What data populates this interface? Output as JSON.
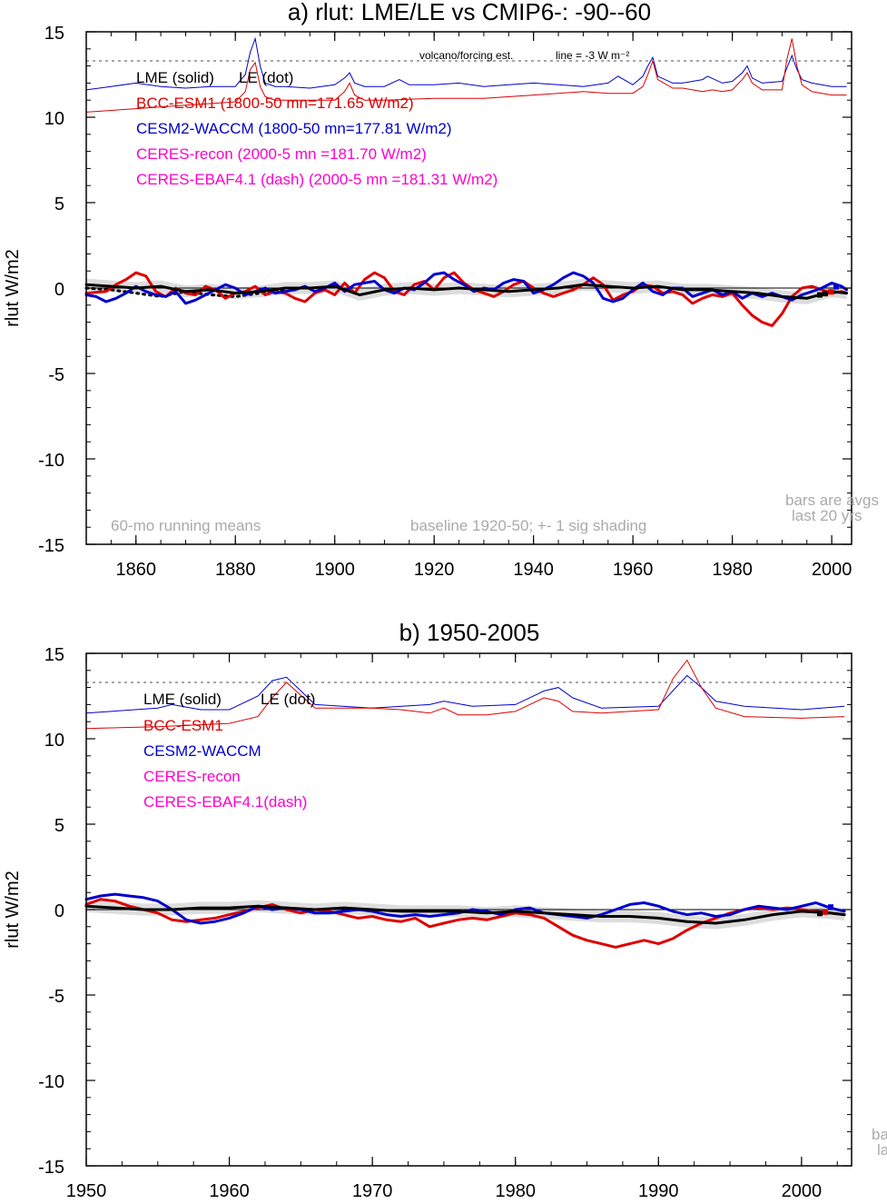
{
  "chart_data": [
    {
      "type": "line",
      "title": "a) rlut: LME/LE vs CMIP6-: -90--60",
      "ylabel": "rlut W/m2",
      "xlim": [
        1850,
        2004
      ],
      "ylim": [
        -15,
        15
      ],
      "xticks": [
        1860,
        1880,
        1900,
        1920,
        1940,
        1960,
        1980,
        2000
      ],
      "yticks": [
        -15,
        -10,
        -5,
        0,
        5,
        10,
        15
      ],
      "legend": [
        "LME (solid)",
        "LE (dot)",
        "BCC-ESM1 (1800-50 mn=171.65 W/m2)",
        "CESM2-WACCM (1800-50 mn=177.81 W/m2)",
        "CERES-recon (2000-5 mn =181.70 W/m2)",
        "CERES-EBAF4.1 (dash) (2000-5 mn =181.31 W/m2)"
      ],
      "legend_colors": [
        "#000000",
        "#000000",
        "#dd0000",
        "#0000cc",
        "#ff00cc",
        "#ff00cc"
      ],
      "annotations": [
        "volcano/forcing est.",
        "line = -3 W m⁻²",
        "60-mo running means",
        "baseline 1920-50; +- 1 sig shading",
        "bars are avgs",
        "last 20 yrs"
      ],
      "reference_line_y": 13.3,
      "shading": "+-1 sigma around LME",
      "series": [
        {
          "name": "LME (solid)",
          "color": "#000000",
          "x": [
            1850,
            1855,
            1860,
            1865,
            1870,
            1875,
            1880,
            1885,
            1890,
            1895,
            1900,
            1905,
            1910,
            1915,
            1920,
            1925,
            1930,
            1935,
            1940,
            1945,
            1950,
            1955,
            1960,
            1965,
            1970,
            1975,
            1980,
            1985,
            1990,
            1995,
            2000,
            2003
          ],
          "y": [
            0.2,
            0.1,
            0.0,
            0.1,
            -0.2,
            -0.1,
            -0.3,
            -0.2,
            0.0,
            0.0,
            0.1,
            -0.4,
            -0.1,
            0.0,
            -0.1,
            0.0,
            -0.1,
            -0.2,
            -0.1,
            0.0,
            0.2,
            0.1,
            0.0,
            0.1,
            -0.1,
            -0.1,
            -0.2,
            -0.3,
            -0.5,
            -0.6,
            -0.2,
            -0.3
          ]
        },
        {
          "name": "LE (dot)",
          "color": "#000000",
          "x": [
            1850,
            1855,
            1860,
            1865,
            1870,
            1875,
            1880,
            1885,
            1890
          ],
          "y": [
            0.0,
            -0.1,
            -0.3,
            -0.5,
            -0.2,
            -0.4,
            -0.5,
            -0.3,
            -0.1
          ]
        },
        {
          "name": "BCC-ESM1",
          "color": "#dd0000",
          "x": [
            1850,
            1854,
            1856,
            1858,
            1860,
            1862,
            1864,
            1866,
            1868,
            1870,
            1872,
            1874,
            1876,
            1878,
            1880,
            1882,
            1884,
            1886,
            1888,
            1890,
            1892,
            1894,
            1896,
            1898,
            1900,
            1902,
            1904,
            1906,
            1908,
            1910,
            1912,
            1914,
            1916,
            1918,
            1920,
            1922,
            1924,
            1926,
            1928,
            1930,
            1932,
            1934,
            1936,
            1938,
            1940,
            1942,
            1944,
            1946,
            1948,
            1950,
            1952,
            1954,
            1956,
            1958,
            1960,
            1962,
            1964,
            1966,
            1968,
            1970,
            1972,
            1974,
            1976,
            1978,
            1980,
            1982,
            1984,
            1986,
            1988,
            1990,
            1992,
            1994,
            1996,
            1998,
            2000,
            2002,
            2003
          ],
          "y": [
            -0.3,
            -0.2,
            0.2,
            0.5,
            0.9,
            0.7,
            -0.2,
            -0.5,
            0.0,
            -0.3,
            -0.4,
            0.1,
            -0.1,
            -0.6,
            -0.3,
            -0.2,
            0.1,
            -0.4,
            -0.2,
            -0.3,
            -0.6,
            -0.8,
            -0.3,
            -0.1,
            -0.4,
            0.3,
            -0.3,
            0.5,
            0.9,
            0.6,
            -0.2,
            -0.4,
            0.2,
            0.4,
            -0.1,
            0.6,
            0.9,
            0.3,
            -0.1,
            -0.3,
            -0.5,
            -0.2,
            0.2,
            0.4,
            0.0,
            -0.3,
            -0.5,
            -0.3,
            -0.1,
            0.2,
            0.6,
            0.2,
            -0.7,
            -0.4,
            -0.2,
            0.2,
            0.1,
            -0.3,
            -0.2,
            -0.4,
            -0.9,
            -0.6,
            -0.4,
            -0.5,
            -0.3,
            -1.0,
            -1.6,
            -2.0,
            -2.2,
            -1.5,
            -0.5,
            0.0,
            0.1,
            -0.1,
            -0.3,
            -0.2,
            -0.3
          ]
        },
        {
          "name": "CESM2-WACCM",
          "color": "#0000cc",
          "x": [
            1850,
            1852,
            1854,
            1856,
            1858,
            1860,
            1862,
            1864,
            1866,
            1868,
            1870,
            1872,
            1874,
            1876,
            1878,
            1880,
            1882,
            1884,
            1886,
            1888,
            1890,
            1892,
            1894,
            1896,
            1898,
            1900,
            1902,
            1904,
            1906,
            1908,
            1910,
            1912,
            1914,
            1916,
            1918,
            1920,
            1922,
            1924,
            1926,
            1928,
            1930,
            1932,
            1934,
            1936,
            1938,
            1940,
            1942,
            1944,
            1946,
            1948,
            1950,
            1952,
            1954,
            1956,
            1958,
            1960,
            1962,
            1964,
            1966,
            1968,
            1970,
            1972,
            1974,
            1976,
            1978,
            1980,
            1982,
            1984,
            1986,
            1988,
            1990,
            1992,
            1994,
            1996,
            1998,
            2000,
            2002,
            2003
          ],
          "y": [
            -0.4,
            -0.5,
            -0.8,
            -0.6,
            -0.3,
            0.1,
            -0.2,
            -0.4,
            -0.5,
            -0.2,
            -0.9,
            -0.7,
            -0.4,
            -0.1,
            0.2,
            0.0,
            -0.4,
            -0.2,
            0.0,
            -0.3,
            -0.2,
            -0.1,
            0.1,
            -0.2,
            0.0,
            0.3,
            -0.2,
            0.2,
            0.3,
            0.4,
            -0.1,
            -0.3,
            0.0,
            -0.1,
            0.3,
            0.8,
            0.9,
            0.5,
            0.2,
            -0.2,
            0.0,
            -0.1,
            0.3,
            0.5,
            0.4,
            -0.3,
            -0.1,
            0.2,
            0.6,
            0.9,
            0.7,
            0.3,
            -0.6,
            -0.8,
            -0.6,
            -0.1,
            0.3,
            -0.2,
            -0.4,
            0.0,
            0.0,
            -0.5,
            -0.3,
            -0.1,
            -0.4,
            -0.2,
            -0.6,
            -0.3,
            -0.5,
            -0.3,
            -0.5,
            -0.7,
            -0.4,
            -0.2,
            0.0,
            0.3,
            0.1,
            -0.1
          ]
        }
      ]
    },
    {
      "type": "line",
      "title": "b) 1950-2005",
      "ylabel": "rlut W/m2",
      "xlim": [
        1950,
        2003.5
      ],
      "ylim": [
        -15,
        15
      ],
      "xticks": [
        1950,
        1960,
        1970,
        1980,
        1990,
        2000
      ],
      "yticks": [
        -15,
        -10,
        -5,
        0,
        5,
        10,
        15
      ],
      "legend": [
        "LME (solid)",
        "LE (dot)",
        "BCC-ESM1",
        "CESM2-WACCM",
        "CERES-recon",
        "CERES-EBAF4.1(dash)"
      ],
      "legend_colors": [
        "#000000",
        "#000000",
        "#dd0000",
        "#0000cc",
        "#ff00cc",
        "#ff00cc"
      ],
      "annotations": [
        "ba",
        "la"
      ],
      "reference_line_y": 13.3,
      "series": [
        {
          "name": "LME (solid)",
          "color": "#000000",
          "x": [
            1950,
            1952,
            1954,
            1956,
            1958,
            1960,
            1962,
            1964,
            1966,
            1968,
            1970,
            1972,
            1974,
            1976,
            1978,
            1980,
            1982,
            1984,
            1986,
            1988,
            1990,
            1992,
            1994,
            1996,
            1998,
            2000,
            2002,
            2003
          ],
          "y": [
            0.2,
            0.1,
            0.0,
            0.0,
            0.1,
            0.1,
            0.2,
            0.1,
            0.0,
            0.1,
            0.0,
            -0.1,
            -0.1,
            -0.1,
            -0.2,
            -0.1,
            -0.2,
            -0.3,
            -0.4,
            -0.4,
            -0.5,
            -0.7,
            -0.8,
            -0.6,
            -0.3,
            -0.1,
            -0.2,
            -0.3
          ]
        },
        {
          "name": "BCC-ESM1",
          "color": "#dd0000",
          "x": [
            1950,
            1951,
            1952,
            1953,
            1954,
            1955,
            1956,
            1957,
            1958,
            1959,
            1960,
            1961,
            1962,
            1963,
            1964,
            1965,
            1966,
            1967,
            1968,
            1969,
            1970,
            1971,
            1972,
            1973,
            1974,
            1975,
            1976,
            1977,
            1978,
            1979,
            1980,
            1981,
            1982,
            1983,
            1984,
            1985,
            1986,
            1987,
            1988,
            1989,
            1990,
            1991,
            1992,
            1993,
            1994,
            1995,
            1996,
            1997,
            1998,
            1999,
            2000,
            2001,
            2002,
            2003
          ],
          "y": [
            0.3,
            0.6,
            0.5,
            0.2,
            0.0,
            -0.2,
            -0.6,
            -0.7,
            -0.6,
            -0.5,
            -0.3,
            -0.1,
            0.1,
            0.3,
            0.0,
            -0.2,
            0.0,
            -0.1,
            -0.3,
            -0.5,
            -0.4,
            -0.6,
            -0.7,
            -0.5,
            -1.0,
            -0.8,
            -0.6,
            -0.5,
            -0.6,
            -0.4,
            -0.2,
            -0.3,
            -0.5,
            -1.0,
            -1.5,
            -1.8,
            -2.0,
            -2.2,
            -2.0,
            -1.8,
            -2.0,
            -1.7,
            -1.2,
            -0.8,
            -0.5,
            -0.2,
            0.0,
            0.1,
            0.0,
            0.1,
            0.0,
            -0.1,
            -0.2,
            -0.3
          ]
        },
        {
          "name": "CESM2-WACCM",
          "color": "#0000cc",
          "x": [
            1950,
            1951,
            1952,
            1953,
            1954,
            1955,
            1956,
            1957,
            1958,
            1959,
            1960,
            1961,
            1962,
            1963,
            1964,
            1965,
            1966,
            1967,
            1968,
            1969,
            1970,
            1971,
            1972,
            1973,
            1974,
            1975,
            1976,
            1977,
            1978,
            1979,
            1980,
            1981,
            1982,
            1983,
            1984,
            1985,
            1986,
            1987,
            1988,
            1989,
            1990,
            1991,
            1992,
            1993,
            1994,
            1995,
            1996,
            1997,
            1998,
            1999,
            2000,
            2001,
            2002,
            2003
          ],
          "y": [
            0.6,
            0.8,
            0.9,
            0.8,
            0.7,
            0.5,
            0.0,
            -0.6,
            -0.8,
            -0.7,
            -0.5,
            -0.2,
            0.2,
            0.0,
            0.1,
            0.0,
            -0.2,
            -0.2,
            -0.1,
            0.0,
            -0.1,
            -0.3,
            -0.4,
            -0.3,
            -0.4,
            -0.3,
            -0.2,
            0.0,
            -0.1,
            -0.3,
            0.0,
            0.1,
            -0.2,
            -0.3,
            -0.4,
            -0.5,
            -0.3,
            0.0,
            0.3,
            0.4,
            0.2,
            -0.1,
            -0.3,
            -0.2,
            -0.4,
            -0.3,
            0.0,
            0.2,
            0.1,
            0.0,
            0.2,
            0.4,
            0.1,
            -0.1
          ]
        }
      ]
    }
  ],
  "forcing_a": {
    "red": {
      "x": [
        1850,
        1860,
        1870,
        1880,
        1882,
        1883,
        1884,
        1885,
        1886,
        1888,
        1890,
        1900,
        1902,
        1903,
        1904,
        1906,
        1910,
        1920,
        1930,
        1940,
        1950,
        1955,
        1960,
        1962,
        1963,
        1964,
        1965,
        1968,
        1970,
        1972,
        1974,
        1976,
        1978,
        1980,
        1982,
        1983,
        1984,
        1986,
        1990,
        1991,
        1992,
        1993,
        1994,
        1996,
        2000,
        2003
      ],
      "y": [
        10.3,
        10.5,
        10.7,
        10.9,
        11.5,
        12.8,
        13.2,
        11.8,
        11.2,
        11.0,
        11.0,
        11.0,
        11.5,
        12.0,
        11.3,
        11.0,
        11.0,
        11.1,
        11.1,
        11.3,
        11.5,
        11.4,
        11.4,
        11.8,
        12.5,
        13.3,
        12.2,
        11.7,
        11.7,
        11.6,
        11.5,
        11.6,
        11.5,
        11.6,
        12.2,
        12.6,
        12.0,
        11.6,
        11.6,
        13.4,
        14.6,
        13.0,
        11.9,
        11.5,
        11.3,
        11.3
      ]
    },
    "blue": {
      "x": [
        1850,
        1855,
        1860,
        1865,
        1870,
        1875,
        1880,
        1882,
        1883,
        1884,
        1885,
        1886,
        1888,
        1890,
        1895,
        1900,
        1902,
        1903,
        1904,
        1906,
        1910,
        1913,
        1915,
        1920,
        1925,
        1930,
        1935,
        1940,
        1945,
        1950,
        1955,
        1957,
        1960,
        1962,
        1963,
        1964,
        1965,
        1968,
        1970,
        1974,
        1975,
        1978,
        1980,
        1982,
        1983,
        1984,
        1986,
        1990,
        1991,
        1992,
        1993,
        1994,
        1996,
        2000,
        2003
      ],
      "y": [
        11.6,
        11.8,
        12.0,
        11.8,
        11.7,
        11.8,
        11.8,
        12.5,
        13.8,
        14.6,
        13.0,
        12.0,
        11.8,
        11.8,
        11.7,
        11.9,
        12.3,
        12.6,
        12.0,
        11.8,
        11.8,
        12.2,
        11.9,
        11.9,
        12.0,
        11.8,
        11.9,
        12.0,
        11.9,
        11.8,
        12.0,
        12.4,
        11.9,
        12.4,
        13.0,
        13.5,
        12.4,
        12.0,
        12.0,
        12.2,
        12.4,
        12.0,
        12.1,
        12.6,
        13.0,
        12.3,
        12.0,
        12.1,
        12.9,
        13.6,
        12.8,
        12.2,
        12.0,
        11.8,
        11.8
      ]
    }
  },
  "forcing_b": {
    "red": {
      "x": [
        1950,
        1955,
        1960,
        1962,
        1963,
        1964,
        1966,
        1970,
        1972,
        1974,
        1975,
        1976,
        1978,
        1980,
        1982,
        1983,
        1984,
        1986,
        1990,
        1991,
        1992,
        1993,
        1994,
        1996,
        2000,
        2003
      ],
      "y": [
        10.6,
        10.7,
        10.9,
        11.3,
        12.4,
        13.3,
        11.8,
        11.8,
        11.7,
        11.5,
        11.8,
        11.4,
        11.4,
        11.6,
        12.4,
        12.2,
        11.6,
        11.5,
        11.7,
        13.5,
        14.6,
        13.0,
        11.8,
        11.3,
        11.2,
        11.3
      ]
    },
    "blue": {
      "x": [
        1950,
        1955,
        1956,
        1958,
        1960,
        1962,
        1963,
        1964,
        1966,
        1970,
        1974,
        1975,
        1977,
        1980,
        1982,
        1983,
        1984,
        1986,
        1990,
        1991,
        1992,
        1993,
        1994,
        1996,
        2000,
        2003
      ],
      "y": [
        11.5,
        11.8,
        12.0,
        11.7,
        11.7,
        12.5,
        13.4,
        13.6,
        12.0,
        11.8,
        12.0,
        12.2,
        11.9,
        12.0,
        12.8,
        13.0,
        12.4,
        11.8,
        11.9,
        12.8,
        13.7,
        13.0,
        12.2,
        11.9,
        11.7,
        11.9
      ]
    }
  }
}
